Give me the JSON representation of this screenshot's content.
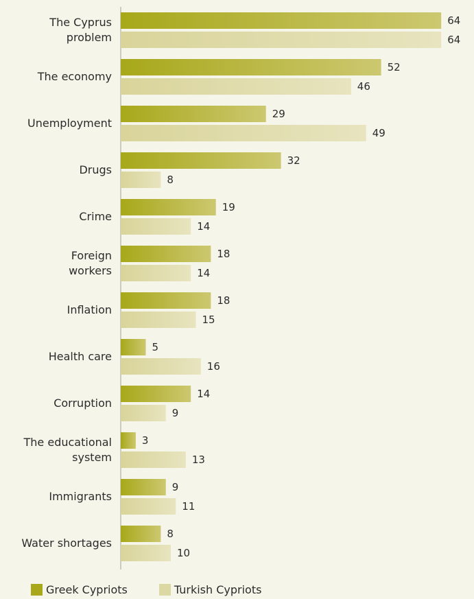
{
  "colors": {
    "background": "#f6f5ea",
    "greek_dark": "#a8a81a",
    "greek_light": "#ccc870",
    "turkish_dark": "#d9d49a",
    "turkish_light": "#e7e4bf",
    "axis": "#a0a0a0"
  },
  "chart_data": {
    "type": "bar",
    "orientation": "horizontal",
    "categories": [
      [
        "The Cyprus",
        "problem"
      ],
      [
        "The economy"
      ],
      [
        "Unemployment"
      ],
      [
        "Drugs"
      ],
      [
        "Crime"
      ],
      [
        "Foreign",
        "workers"
      ],
      [
        "Inflation"
      ],
      [
        "Health care"
      ],
      [
        "Corruption"
      ],
      [
        "The educational",
        "system"
      ],
      [
        "Immigrants"
      ],
      [
        "Water shortages"
      ]
    ],
    "series": [
      {
        "name": "Greek Cypriots",
        "values": [
          64,
          52,
          29,
          32,
          19,
          18,
          18,
          5,
          14,
          3,
          9,
          8
        ]
      },
      {
        "name": "Turkish Cypriots",
        "values": [
          64,
          46,
          49,
          8,
          14,
          14,
          15,
          16,
          9,
          13,
          11,
          10
        ]
      }
    ],
    "xlim": [
      0,
      64
    ],
    "grid": false,
    "legend_position": "bottom-left"
  },
  "legend": {
    "greek": "Greek Cypriots",
    "turkish": "Turkish Cypriots"
  }
}
